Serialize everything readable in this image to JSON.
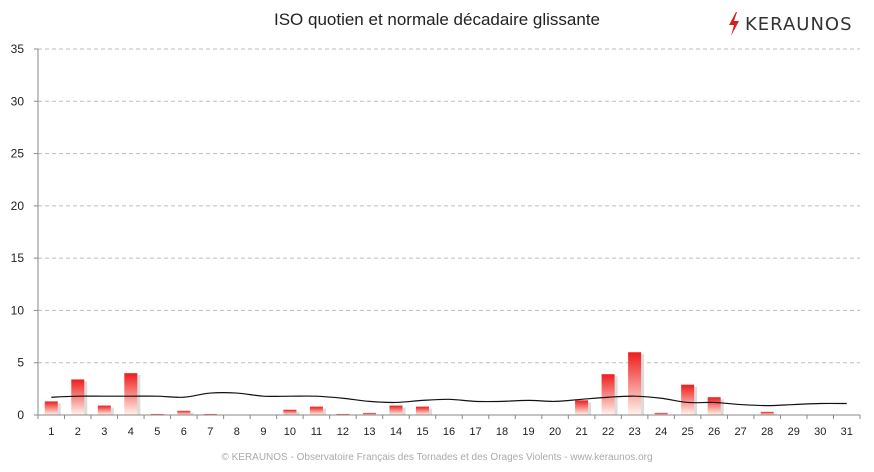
{
  "chart_data": {
    "type": "bar",
    "title": "ISO quotien et normale décadaire glissante",
    "categories": [
      "1",
      "2",
      "3",
      "4",
      "5",
      "6",
      "7",
      "8",
      "9",
      "10",
      "11",
      "12",
      "13",
      "14",
      "15",
      "16",
      "17",
      "18",
      "19",
      "20",
      "21",
      "22",
      "23",
      "24",
      "25",
      "26",
      "27",
      "28",
      "29",
      "30",
      "31"
    ],
    "series": [
      {
        "type": "bar",
        "color_top": "#ee1c1c",
        "color_bottom": "#fff4ea",
        "values": [
          1.3,
          3.4,
          0.9,
          4.0,
          0.1,
          0.4,
          0.1,
          0,
          0,
          0.5,
          0.8,
          0.1,
          0.2,
          0.9,
          0.8,
          0,
          0,
          0,
          0,
          0,
          1.4,
          3.9,
          6.0,
          0.2,
          2.9,
          1.7,
          0,
          0.3,
          0,
          0,
          0
        ]
      },
      {
        "type": "line",
        "color": "#111111",
        "values": [
          1.7,
          1.8,
          1.8,
          1.8,
          1.8,
          1.7,
          2.1,
          2.1,
          1.8,
          1.8,
          1.8,
          1.6,
          1.3,
          1.2,
          1.4,
          1.5,
          1.3,
          1.3,
          1.4,
          1.3,
          1.5,
          1.7,
          1.8,
          1.6,
          1.2,
          1.2,
          1.0,
          0.9,
          1.0,
          1.1,
          1.1
        ]
      }
    ],
    "y_ticks": [
      "0",
      "5",
      "10",
      "15",
      "20",
      "25",
      "30",
      "35"
    ],
    "ylim": [
      0,
      35
    ],
    "grid": true,
    "legend": "none"
  },
  "logo": {
    "text": "KERAUNOS",
    "accent": "#d42020"
  },
  "footer": "© KERAUNOS - Observatoire Français des Tornades et des Orages Violents - www.keraunos.org"
}
